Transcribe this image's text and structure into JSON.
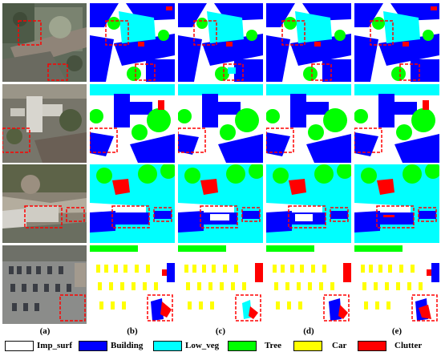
{
  "column_labels": [
    "(a)",
    "(b)",
    "(c)",
    "(d)",
    "(e)"
  ],
  "legend": [
    {
      "label": "Imp_surf",
      "color": "#ffffff"
    },
    {
      "label": "Building",
      "color": "#0000ff"
    },
    {
      "label": "Low_veg",
      "color": "#00ffff"
    },
    {
      "label": "Tree",
      "color": "#00ff00"
    },
    {
      "label": "Car",
      "color": "#ffff00"
    },
    {
      "label": "Clutter",
      "color": "#ff0000"
    }
  ],
  "colors": {
    "highlight_box": "#ff0000",
    "photo_row1": "#6d7566",
    "photo_row2": "#7c7a6f",
    "photo_row3": "#8a8375",
    "photo_row4": "#8b8c8a"
  }
}
